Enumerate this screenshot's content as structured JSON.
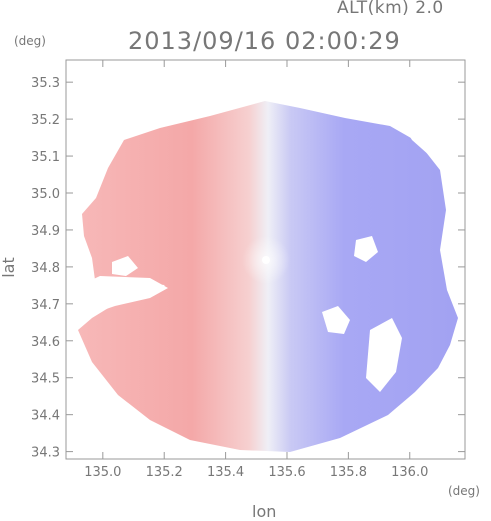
{
  "header": {
    "altitude_label": "ALT(km) 2.0",
    "timestamp": "2013/09/16 02:00:29"
  },
  "axes": {
    "x_label": "lon",
    "y_label": "lat",
    "x_unit": "(deg)",
    "y_unit": "(deg)",
    "x_ticks": [
      "135.0",
      "135.2",
      "135.4",
      "135.6",
      "135.8",
      "136.0"
    ],
    "y_ticks": [
      "35.3",
      "35.2",
      "35.1",
      "35.0",
      "34.9",
      "34.8",
      "34.7",
      "34.6",
      "34.5",
      "34.4",
      "34.3"
    ],
    "x_range": [
      134.88,
      136.18
    ],
    "y_range": [
      34.28,
      35.36
    ]
  },
  "map": {
    "radar_center": {
      "lon": 135.525,
      "lat": 34.806
    },
    "colors": {
      "approaching": "#f4a8a8",
      "receding": "#9d9df4",
      "near_zero": "#efeff6"
    }
  }
}
